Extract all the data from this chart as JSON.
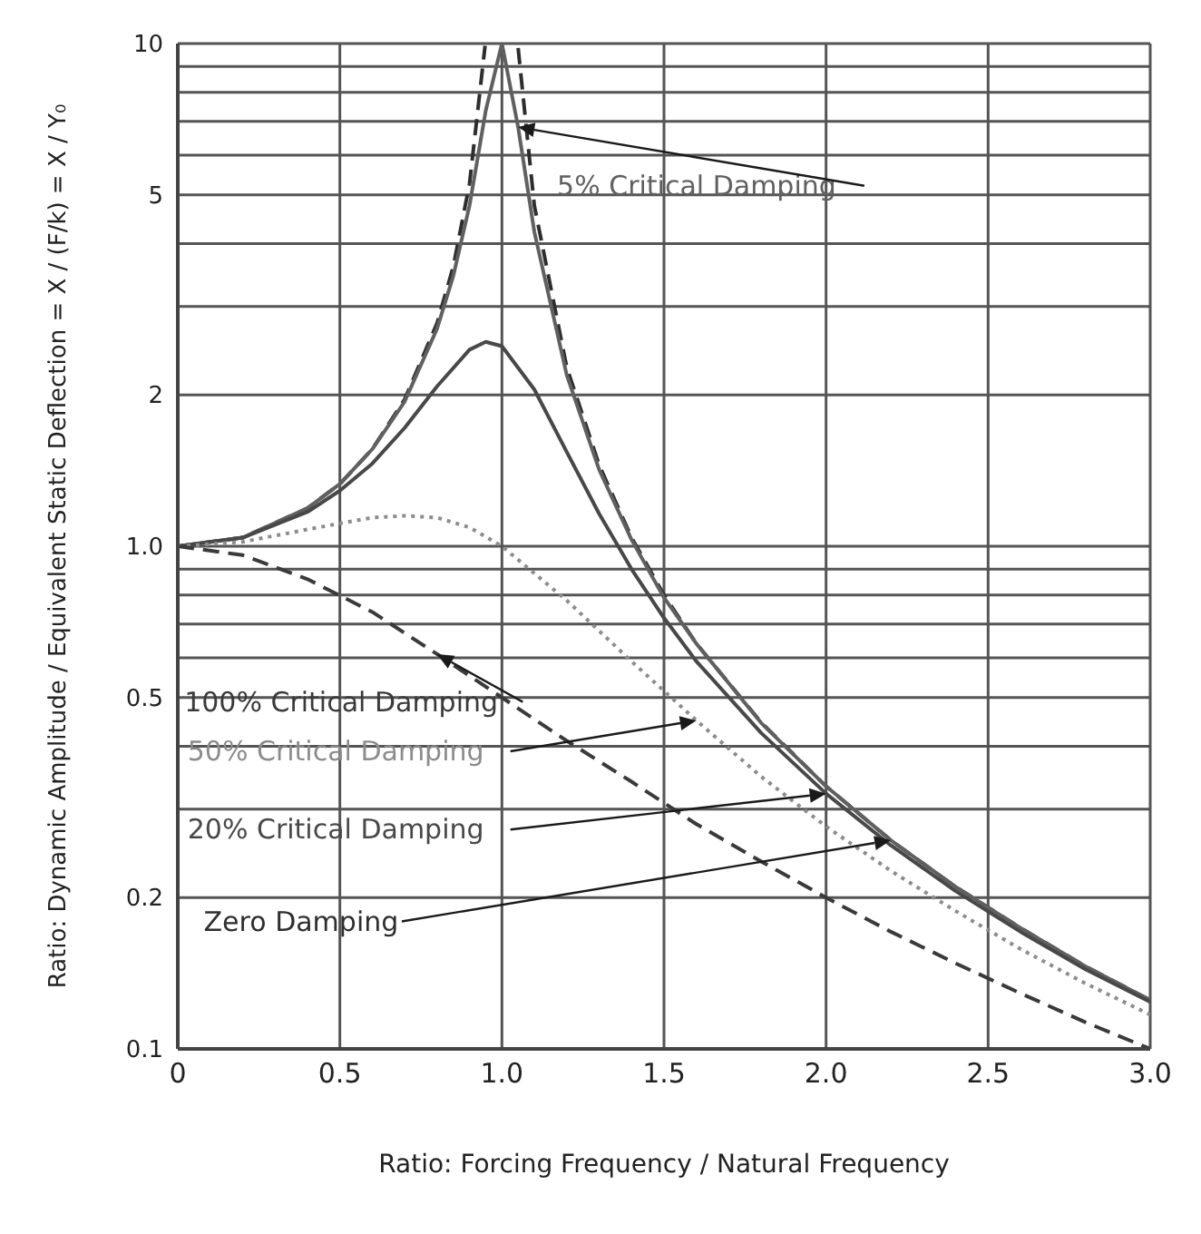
{
  "chart_data": {
    "type": "line",
    "xlabel": "Ratio: Forcing Frequency / Natural Frequency",
    "ylabel": "Ratio: Dynamic Amplitude / Equivalent Static Deflection = X / (F/k) = X / Y₀",
    "log": "y",
    "grid": true,
    "legend": false,
    "marker": "none",
    "xlim": [
      0,
      3
    ],
    "xticks": [
      0,
      {
        "value": 0.5,
        "label": "0.5"
      },
      {
        "value": 1,
        "label": "1.0"
      },
      {
        "value": 1.5,
        "label": "1.5"
      },
      {
        "value": 2,
        "label": "2.0"
      },
      {
        "value": 2.5,
        "label": "2.5"
      },
      {
        "value": 3,
        "label": "3.0"
      }
    ],
    "ylim": [
      0.1,
      10
    ],
    "yticks": [
      0.1,
      0.2,
      {
        "value": 0.3,
        "label": null
      },
      {
        "value": 0.4,
        "label": null
      },
      0.5,
      {
        "value": 0.6,
        "label": null
      },
      {
        "value": 0.7,
        "label": null
      },
      {
        "value": 0.8,
        "label": null
      },
      {
        "value": 0.9,
        "label": null
      },
      {
        "value": 1,
        "label": "1.0"
      },
      2,
      {
        "value": 3,
        "label": null
      },
      {
        "value": 4,
        "label": null
      },
      5,
      {
        "value": 6,
        "label": null
      },
      {
        "value": 7,
        "label": null
      },
      {
        "value": 8,
        "label": null
      },
      {
        "value": 9,
        "label": null
      },
      10
    ],
    "series": [
      {
        "name": "Zero Damping",
        "color": "#2e2e2e",
        "line_style": "dashed",
        "x": [
          0,
          0.2,
          0.4,
          0.5,
          0.6,
          0.7,
          0.8,
          0.85,
          0.9,
          0.948,
          1.0,
          1.05,
          1.1,
          1.2,
          1.3,
          1.4,
          1.5,
          1.6,
          1.8,
          2.0,
          2.2,
          2.4,
          2.6,
          2.8,
          3.0
        ],
        "values": [
          1,
          1.04,
          1.19,
          1.33,
          1.56,
          1.96,
          2.78,
          3.6,
          5.26,
          9.9,
          null,
          9.8,
          4.76,
          2.27,
          1.45,
          1.04,
          0.8,
          0.64,
          0.446,
          0.333,
          0.26,
          0.21,
          0.174,
          0.146,
          0.125
        ]
      },
      {
        "name": "5% Critical Damping",
        "color": "#606060",
        "line_style": "solid",
        "x": [
          0,
          0.2,
          0.4,
          0.5,
          0.6,
          0.7,
          0.8,
          0.85,
          0.9,
          0.95,
          1.0,
          1.05,
          1.1,
          1.2,
          1.3,
          1.4,
          1.5,
          1.6,
          1.8,
          2.0,
          2.2,
          2.4,
          2.6,
          2.8,
          3.0
        ],
        "values": [
          1,
          1.04,
          1.19,
          1.33,
          1.56,
          1.94,
          2.71,
          3.45,
          4.76,
          7.35,
          10,
          6.82,
          4.22,
          2.19,
          1.42,
          1.03,
          0.79,
          0.64,
          0.445,
          0.333,
          0.26,
          0.21,
          0.174,
          0.146,
          0.125
        ]
      },
      {
        "name": "20% Critical Damping",
        "color": "#484848",
        "line_style": "solid",
        "x": [
          0,
          0.2,
          0.4,
          0.5,
          0.6,
          0.7,
          0.8,
          0.9,
          0.95,
          1.0,
          1.1,
          1.2,
          1.3,
          1.4,
          1.5,
          1.6,
          1.8,
          2.0,
          2.2,
          2.4,
          2.6,
          2.8,
          3.0
        ],
        "values": [
          1,
          1.04,
          1.17,
          1.29,
          1.46,
          1.72,
          2.08,
          2.46,
          2.55,
          2.5,
          2.05,
          1.54,
          1.16,
          0.9,
          0.72,
          0.59,
          0.425,
          0.322,
          0.254,
          0.206,
          0.171,
          0.144,
          0.124
        ]
      },
      {
        "name": "50% Critical Damping",
        "color": "#8c8c8c",
        "line_style": "dotted",
        "x": [
          0,
          0.2,
          0.4,
          0.5,
          0.6,
          0.7,
          0.8,
          0.9,
          1.0,
          1.2,
          1.4,
          1.6,
          1.8,
          2.0,
          2.2,
          2.4,
          2.6,
          2.8,
          3.0
        ],
        "values": [
          1,
          1.02,
          1.08,
          1.11,
          1.14,
          1.15,
          1.14,
          1.09,
          1,
          0.78,
          0.59,
          0.45,
          0.348,
          0.277,
          0.226,
          0.188,
          0.158,
          0.135,
          0.117
        ]
      },
      {
        "name": "100% Critical Damping",
        "color": "#3a3a3a",
        "line_style": "dashed",
        "x": [
          0,
          0.2,
          0.4,
          0.6,
          0.8,
          1.0,
          1.2,
          1.4,
          1.6,
          1.8,
          2.0,
          2.2,
          2.4,
          2.6,
          2.8,
          3.0
        ],
        "values": [
          1,
          0.96,
          0.86,
          0.74,
          0.61,
          0.5,
          0.41,
          0.34,
          0.28,
          0.236,
          0.2,
          0.171,
          0.148,
          0.129,
          0.113,
          0.1
        ]
      }
    ]
  }
}
